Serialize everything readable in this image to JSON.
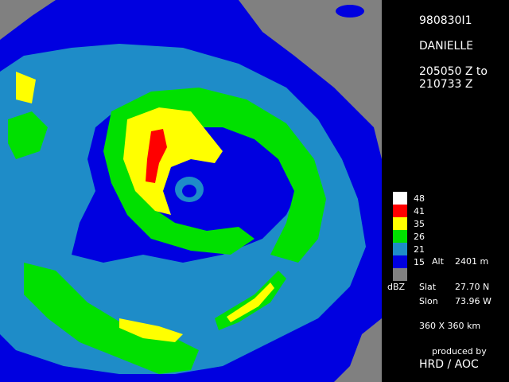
{
  "header": {
    "id": "980830I1",
    "storm": "DANIELLE",
    "time_start": "205050 Z to",
    "time_end": "210733 Z"
  },
  "legend": {
    "levels": [
      {
        "label": 48,
        "color": "#ffffff"
      },
      {
        "label": 41,
        "color": "#ff0000"
      },
      {
        "label": 35,
        "color": "#ffff00"
      },
      {
        "label": 26,
        "color": "#00e000"
      },
      {
        "label": 21,
        "color": "#1e8cc8"
      },
      {
        "label": 15,
        "color": "#0000e0"
      }
    ],
    "no_data_color": "#808080",
    "unit": "dBZ",
    "alt_label": "Alt",
    "alt_value": "2401 m"
  },
  "position": {
    "lat_label": "Slat",
    "lat_value": "27.70 N",
    "lon_label": "Slon",
    "lon_value": "73.96 W"
  },
  "extent": "360 X 360 km",
  "credit": {
    "line1": "produced by",
    "line2": "HRD / AOC"
  }
}
